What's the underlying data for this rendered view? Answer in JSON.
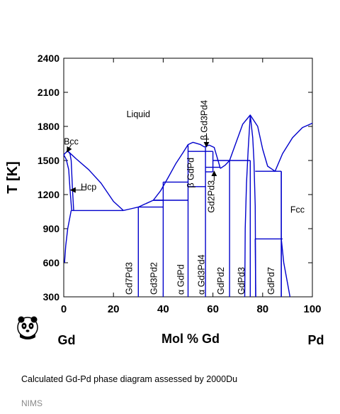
{
  "caption": "Calculated Gd-Pd phase diagram assessed by 2000Du",
  "credit": "NIMS",
  "colors": {
    "curve": "#0000cc",
    "axis": "#000000",
    "text": "#000000",
    "credit": "#8a8a8a"
  },
  "chart_data": {
    "type": "phase-diagram",
    "ylabel": "T [K]",
    "xlabel": "Mol % Gd",
    "x_left_label": "Gd",
    "x_right_label": "Pd",
    "xlim": [
      0,
      100
    ],
    "ylim": [
      300,
      2400
    ],
    "x_ticks": [
      0,
      20,
      40,
      60,
      80,
      100
    ],
    "y_ticks": [
      300,
      600,
      900,
      1200,
      1500,
      1800,
      2100,
      2400
    ],
    "grid": false,
    "phase_labels": [
      {
        "text": "Liquid",
        "x": 30,
        "y": 1880,
        "rotate": false
      },
      {
        "text": "Bcc",
        "x": 3,
        "y": 1640,
        "rotate": false
      },
      {
        "text": "Hcp",
        "x": 10,
        "y": 1240,
        "rotate": false
      },
      {
        "text": "Fcc",
        "x": 94,
        "y": 1040,
        "rotate": false
      },
      {
        "text": "β Gd3Pd4",
        "x": 57.7,
        "y": 1660,
        "rotate": true
      },
      {
        "text": "β GdPd",
        "x": 52.3,
        "y": 1240,
        "rotate": true
      },
      {
        "text": "Gd2Pd3",
        "x": 60.5,
        "y": 1020,
        "rotate": true
      },
      {
        "text": "Gd7Pd3",
        "x": 27.5,
        "y": 300,
        "rotate": true
      },
      {
        "text": "Gd3Pd2",
        "x": 37.5,
        "y": 300,
        "rotate": true
      },
      {
        "text": "α GdPd",
        "x": 48.3,
        "y": 300,
        "rotate": true
      },
      {
        "text": "α Gd3Pd4",
        "x": 56.6,
        "y": 300,
        "rotate": true
      },
      {
        "text": "GdPd2",
        "x": 64.4,
        "y": 300,
        "rotate": true
      },
      {
        "text": "GdPd3",
        "x": 72.6,
        "y": 300,
        "rotate": true
      },
      {
        "text": "GdPd7",
        "x": 84.6,
        "y": 300,
        "rotate": true
      }
    ],
    "arrows": [
      {
        "from": [
          3,
          1640
        ],
        "to": [
          1.3,
          1575
        ]
      },
      {
        "from": [
          8.8,
          1240
        ],
        "to": [
          2.8,
          1240
        ]
      },
      {
        "from": [
          57.4,
          1740
        ],
        "to": [
          57.4,
          1620
        ]
      },
      {
        "from": [
          60.5,
          1320
        ],
        "to": [
          60.5,
          1405
        ]
      }
    ],
    "lines": [
      {
        "name": "liquidus-gd-side",
        "points": [
          [
            0,
            1550
          ],
          [
            1.5,
            1585
          ],
          [
            3,
            1555
          ],
          [
            5,
            1515
          ],
          [
            10,
            1420
          ],
          [
            15,
            1300
          ],
          [
            20,
            1140
          ],
          [
            24,
            1060
          ]
        ]
      },
      {
        "name": "bcc-hcp-boundary-left",
        "points": [
          [
            0,
            1550
          ],
          [
            1,
            1510
          ],
          [
            2,
            1420
          ],
          [
            2.5,
            1250
          ],
          [
            3.2,
            1060
          ]
        ]
      },
      {
        "name": "bcc-hcp-boundary-right",
        "points": [
          [
            1.5,
            1585
          ],
          [
            2.5,
            1560
          ],
          [
            3,
            1500
          ],
          [
            3.5,
            1250
          ],
          [
            4,
            1060
          ]
        ]
      },
      {
        "name": "hcp-solvus",
        "points": [
          [
            0.3,
            600
          ],
          [
            0.8,
            750
          ],
          [
            1.6,
            900
          ],
          [
            3,
            1060
          ]
        ]
      },
      {
        "name": "eutectic-gd-rich",
        "points": [
          [
            3,
            1060
          ],
          [
            24,
            1060
          ]
        ]
      },
      {
        "name": "liquidus-gd7pd3",
        "points": [
          [
            24,
            1060
          ],
          [
            27,
            1075
          ],
          [
            30,
            1090
          ],
          [
            33,
            1120
          ]
        ]
      },
      {
        "name": "peritectic-gd7pd3",
        "points": [
          [
            30,
            1090
          ],
          [
            40,
            1090
          ]
        ]
      },
      {
        "name": "liquidus-gd3pd2-a",
        "points": [
          [
            33,
            1120
          ],
          [
            36,
            1150
          ],
          [
            40,
            1150
          ]
        ]
      },
      {
        "name": "gd3pd2-peritectic",
        "points": [
          [
            36,
            1150
          ],
          [
            50,
            1150
          ]
        ]
      },
      {
        "name": "liquidus-mid",
        "points": [
          [
            36,
            1150
          ],
          [
            39,
            1235
          ],
          [
            42,
            1350
          ],
          [
            45,
            1470
          ],
          [
            48,
            1570
          ],
          [
            50,
            1640
          ],
          [
            52,
            1660
          ],
          [
            55,
            1640
          ],
          [
            56.5,
            1620
          ],
          [
            58.5,
            1635
          ],
          [
            60.5,
            1615
          ],
          [
            63,
            1430
          ]
        ]
      },
      {
        "name": "gd3pd2-upper",
        "points": [
          [
            40,
            1310
          ],
          [
            50,
            1310
          ]
        ]
      },
      {
        "name": "gdpd-transition",
        "points": [
          [
            50,
            1270
          ],
          [
            57,
            1270
          ]
        ]
      },
      {
        "name": "gd3pd4-transition",
        "points": [
          [
            57,
            1400
          ],
          [
            60,
            1400
          ]
        ]
      },
      {
        "name": "beta-gd3pd4-top",
        "points": [
          [
            50,
            1580
          ],
          [
            60,
            1580
          ]
        ]
      },
      {
        "name": "gd2pd3-peritectic",
        "points": [
          [
            57,
            1440
          ],
          [
            63,
            1440
          ]
        ]
      },
      {
        "name": "liquidus-gdpd2",
        "points": [
          [
            63,
            1430
          ],
          [
            65,
            1460
          ],
          [
            66.7,
            1500
          ]
        ]
      },
      {
        "name": "gdpd2-eutectic",
        "points": [
          [
            60,
            1500
          ],
          [
            75,
            1500
          ]
        ]
      },
      {
        "name": "liquidus-gdpd3",
        "points": [
          [
            66.7,
            1500
          ],
          [
            69,
            1640
          ],
          [
            72,
            1820
          ],
          [
            75,
            1900
          ],
          [
            78,
            1800
          ],
          [
            80,
            1600
          ],
          [
            82,
            1450
          ],
          [
            85,
            1405
          ]
        ]
      },
      {
        "name": "gdpd3-left",
        "points": [
          [
            75,
            1900
          ],
          [
            74.2,
            1600
          ],
          [
            73.5,
            1300
          ],
          [
            73,
            900
          ],
          [
            72.8,
            300
          ]
        ]
      },
      {
        "name": "gdpd3-right",
        "points": [
          [
            75,
            1900
          ],
          [
            76,
            1700
          ],
          [
            76.5,
            1500
          ],
          [
            77,
            1100
          ],
          [
            77.2,
            300
          ]
        ]
      },
      {
        "name": "fcc-eutectic",
        "points": [
          [
            77,
            1405
          ],
          [
            87.5,
            1405
          ]
        ]
      },
      {
        "name": "liquidus-pd-side",
        "points": [
          [
            85,
            1405
          ],
          [
            88,
            1560
          ],
          [
            92,
            1700
          ],
          [
            96,
            1790
          ],
          [
            100,
            1828
          ]
        ]
      },
      {
        "name": "fcc-solvus",
        "points": [
          [
            87.5,
            1405
          ],
          [
            87.5,
            810
          ],
          [
            88.5,
            600
          ],
          [
            90,
            420
          ],
          [
            91,
            300
          ]
        ]
      },
      {
        "name": "gdpd7-peritectoid",
        "points": [
          [
            77,
            810
          ],
          [
            88,
            810
          ]
        ]
      },
      {
        "name": "gdpd7-left",
        "points": [
          [
            77.2,
            300
          ],
          [
            77,
            810
          ]
        ]
      },
      {
        "name": "gdpd7-right",
        "points": [
          [
            87.5,
            810
          ],
          [
            87.5,
            300
          ]
        ]
      },
      {
        "name": "phase-gd7pd3",
        "points": [
          [
            30,
            1090
          ],
          [
            30,
            300
          ]
        ]
      },
      {
        "name": "phase-gd3pd2",
        "points": [
          [
            40,
            1310
          ],
          [
            40,
            300
          ]
        ]
      },
      {
        "name": "phase-gdpd-left",
        "points": [
          [
            50,
            1640
          ],
          [
            50,
            300
          ]
        ]
      },
      {
        "name": "phase-gd3pd4",
        "points": [
          [
            57,
            1620
          ],
          [
            57,
            300
          ]
        ]
      },
      {
        "name": "phase-gd2pd3",
        "points": [
          [
            60,
            1580
          ],
          [
            60,
            1400
          ]
        ]
      },
      {
        "name": "phase-gdpd2",
        "points": [
          [
            66.7,
            1500
          ],
          [
            66.7,
            300
          ]
        ]
      },
      {
        "name": "phase-gdpd3-box-left",
        "points": [
          [
            75,
            1500
          ],
          [
            75,
            300
          ]
        ]
      },
      {
        "name": "phase-gdpd7",
        "points": [
          [
            87.5,
            1405
          ],
          [
            87.5,
            300
          ]
        ]
      }
    ]
  }
}
